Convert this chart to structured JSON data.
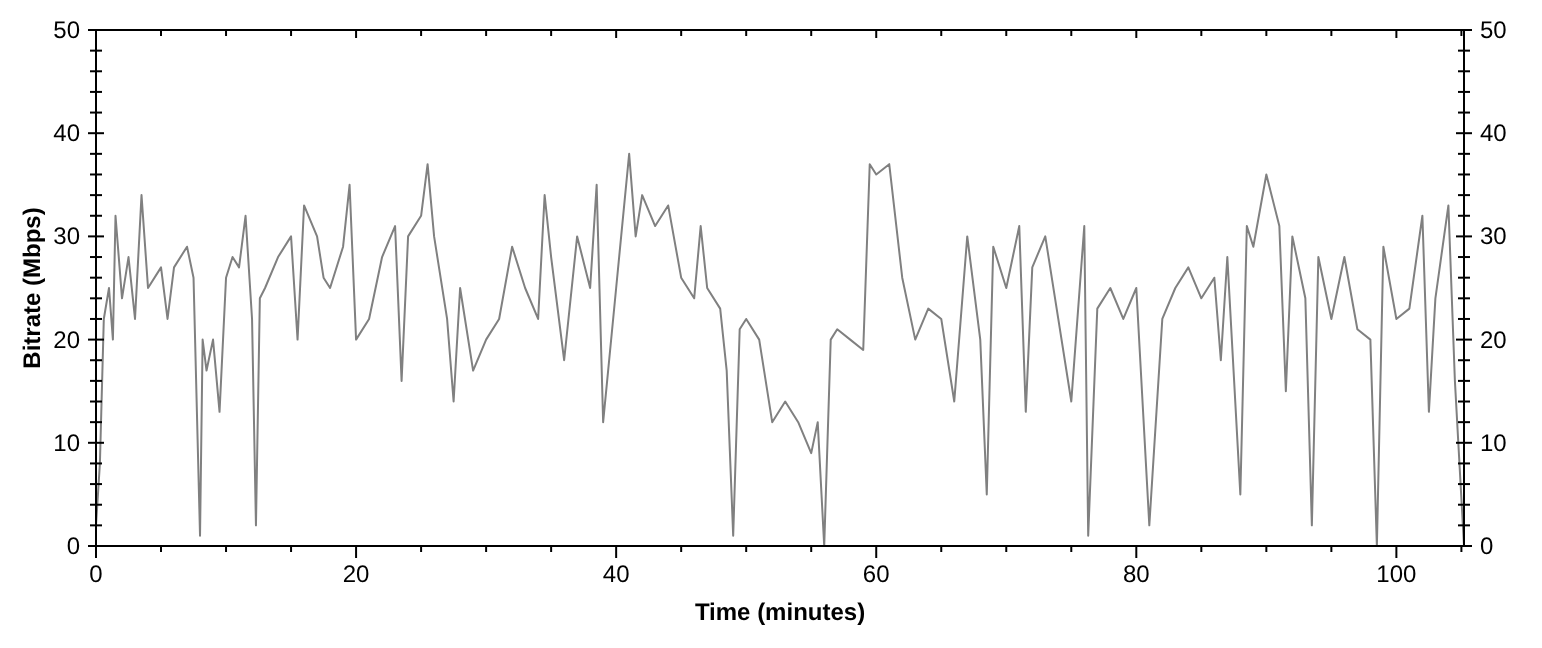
{
  "chart_data": {
    "type": "line",
    "xlabel": "Time (minutes)",
    "ylabel": "Bitrate (Mbps)",
    "xlim": [
      0,
      105.2
    ],
    "xticks": [
      0,
      20,
      40,
      60,
      80,
      100
    ],
    "ylim": [
      0,
      50
    ],
    "yticks": [
      0,
      10,
      20,
      30,
      40,
      50
    ],
    "y2lim": [
      0,
      50
    ],
    "y2ticks": [
      0,
      10,
      20,
      30,
      40,
      50
    ],
    "grid": false,
    "line_style": "solid",
    "series": [
      {
        "color": "#808080",
        "x": [
          0,
          0.3,
          0.6,
          1,
          1.3,
          1.5,
          2,
          2.5,
          3,
          3.5,
          4,
          5,
          5.5,
          6,
          7,
          7.5,
          8,
          8.2,
          8.5,
          9,
          9.5,
          10,
          10.5,
          11,
          11.5,
          12,
          12.3,
          12.6,
          13,
          14,
          15,
          15.5,
          16,
          17,
          17.5,
          18,
          19,
          19.5,
          20,
          21,
          22,
          23,
          23.5,
          24,
          25,
          25.5,
          26,
          27,
          27.5,
          28,
          29,
          30,
          31,
          32,
          33,
          34,
          34.5,
          35,
          36,
          37,
          38,
          38.5,
          39,
          40,
          41,
          41.5,
          42,
          43,
          44,
          45,
          46,
          46.5,
          47,
          48,
          48.5,
          49,
          49.5,
          50,
          51,
          52,
          53,
          54,
          55,
          55.5,
          56,
          56.5,
          57,
          58,
          59,
          59.5,
          60,
          61,
          62,
          63,
          64,
          65,
          66,
          67,
          68,
          68.5,
          69,
          70,
          71,
          71.5,
          72,
          73,
          74,
          75,
          76,
          76.3,
          77,
          78,
          79,
          80,
          81,
          82,
          83,
          84,
          85,
          86,
          86.5,
          87,
          88,
          88.5,
          89,
          90,
          91,
          91.5,
          92,
          93,
          93.5,
          94,
          95,
          96,
          97,
          98,
          98.5,
          99,
          100,
          101,
          102,
          102.5,
          103,
          104,
          104.5,
          105.2
        ],
        "values": [
          2,
          8,
          22,
          25,
          20,
          32,
          24,
          28,
          22,
          34,
          25,
          27,
          22,
          27,
          29,
          26,
          1,
          20,
          17,
          20,
          13,
          26,
          28,
          27,
          32,
          22,
          2,
          24,
          25,
          28,
          30,
          20,
          33,
          30,
          26,
          25,
          29,
          35,
          20,
          22,
          28,
          31,
          16,
          30,
          32,
          37,
          30,
          22,
          14,
          25,
          17,
          20,
          22,
          29,
          25,
          22,
          34,
          28,
          18,
          30,
          25,
          35,
          12,
          25,
          38,
          30,
          34,
          31,
          33,
          26,
          24,
          31,
          25,
          23,
          17,
          1,
          21,
          22,
          20,
          12,
          14,
          12,
          9,
          12,
          0,
          20,
          21,
          20,
          19,
          37,
          36,
          37,
          26,
          20,
          23,
          22,
          14,
          30,
          20,
          5,
          29,
          25,
          31,
          13,
          27,
          30,
          22,
          14,
          31,
          1,
          23,
          25,
          22,
          25,
          2,
          22,
          25,
          27,
          24,
          26,
          18,
          28,
          5,
          31,
          29,
          36,
          31,
          15,
          30,
          24,
          2,
          28,
          22,
          28,
          21,
          20,
          0,
          29,
          22,
          23,
          32,
          13,
          24,
          33,
          16,
          0
        ]
      }
    ]
  }
}
